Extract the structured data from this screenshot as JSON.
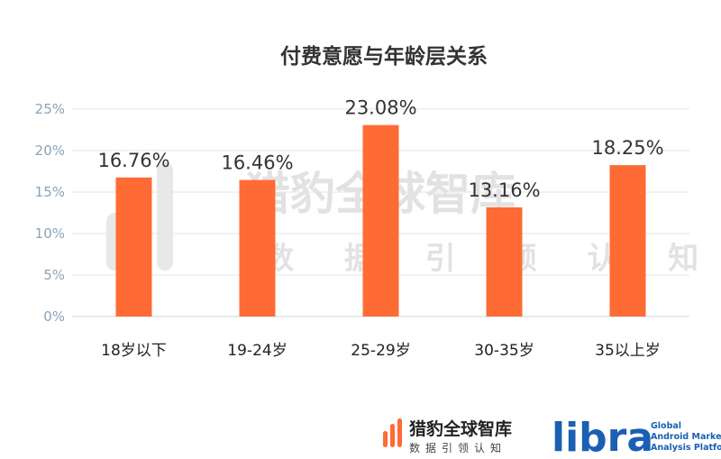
{
  "chart_data": {
    "type": "bar",
    "title": "付费意愿与年龄层关系",
    "categories": [
      "18岁以下",
      "19-24岁",
      "25-29岁",
      "30-35岁",
      "35以上岁"
    ],
    "values": [
      16.76,
      16.46,
      23.08,
      13.16,
      18.25
    ],
    "data_labels": [
      "16.76%",
      "16.46%",
      "23.08%",
      "13.16%",
      "18.25%"
    ],
    "ylim": [
      0,
      25
    ],
    "yticks": [
      "0%",
      "5%",
      "10%",
      "15%",
      "20%",
      "25%"
    ],
    "xlabel": "",
    "ylabel": "",
    "grid": true,
    "bar_color": "#ff6b35"
  },
  "watermark": {
    "main": "猎豹全球智库",
    "sub": "数 据 引 领 认 知"
  },
  "footer": {
    "brand_cn": "猎豹全球智库",
    "brand_sub": "数据引领认知",
    "libra": "libra",
    "libra_tagline": [
      "Global",
      "Android Market",
      "Analysis Platform"
    ]
  },
  "colors": {
    "accent": "#ff6b35",
    "libra_blue": "#1a5fb4"
  }
}
